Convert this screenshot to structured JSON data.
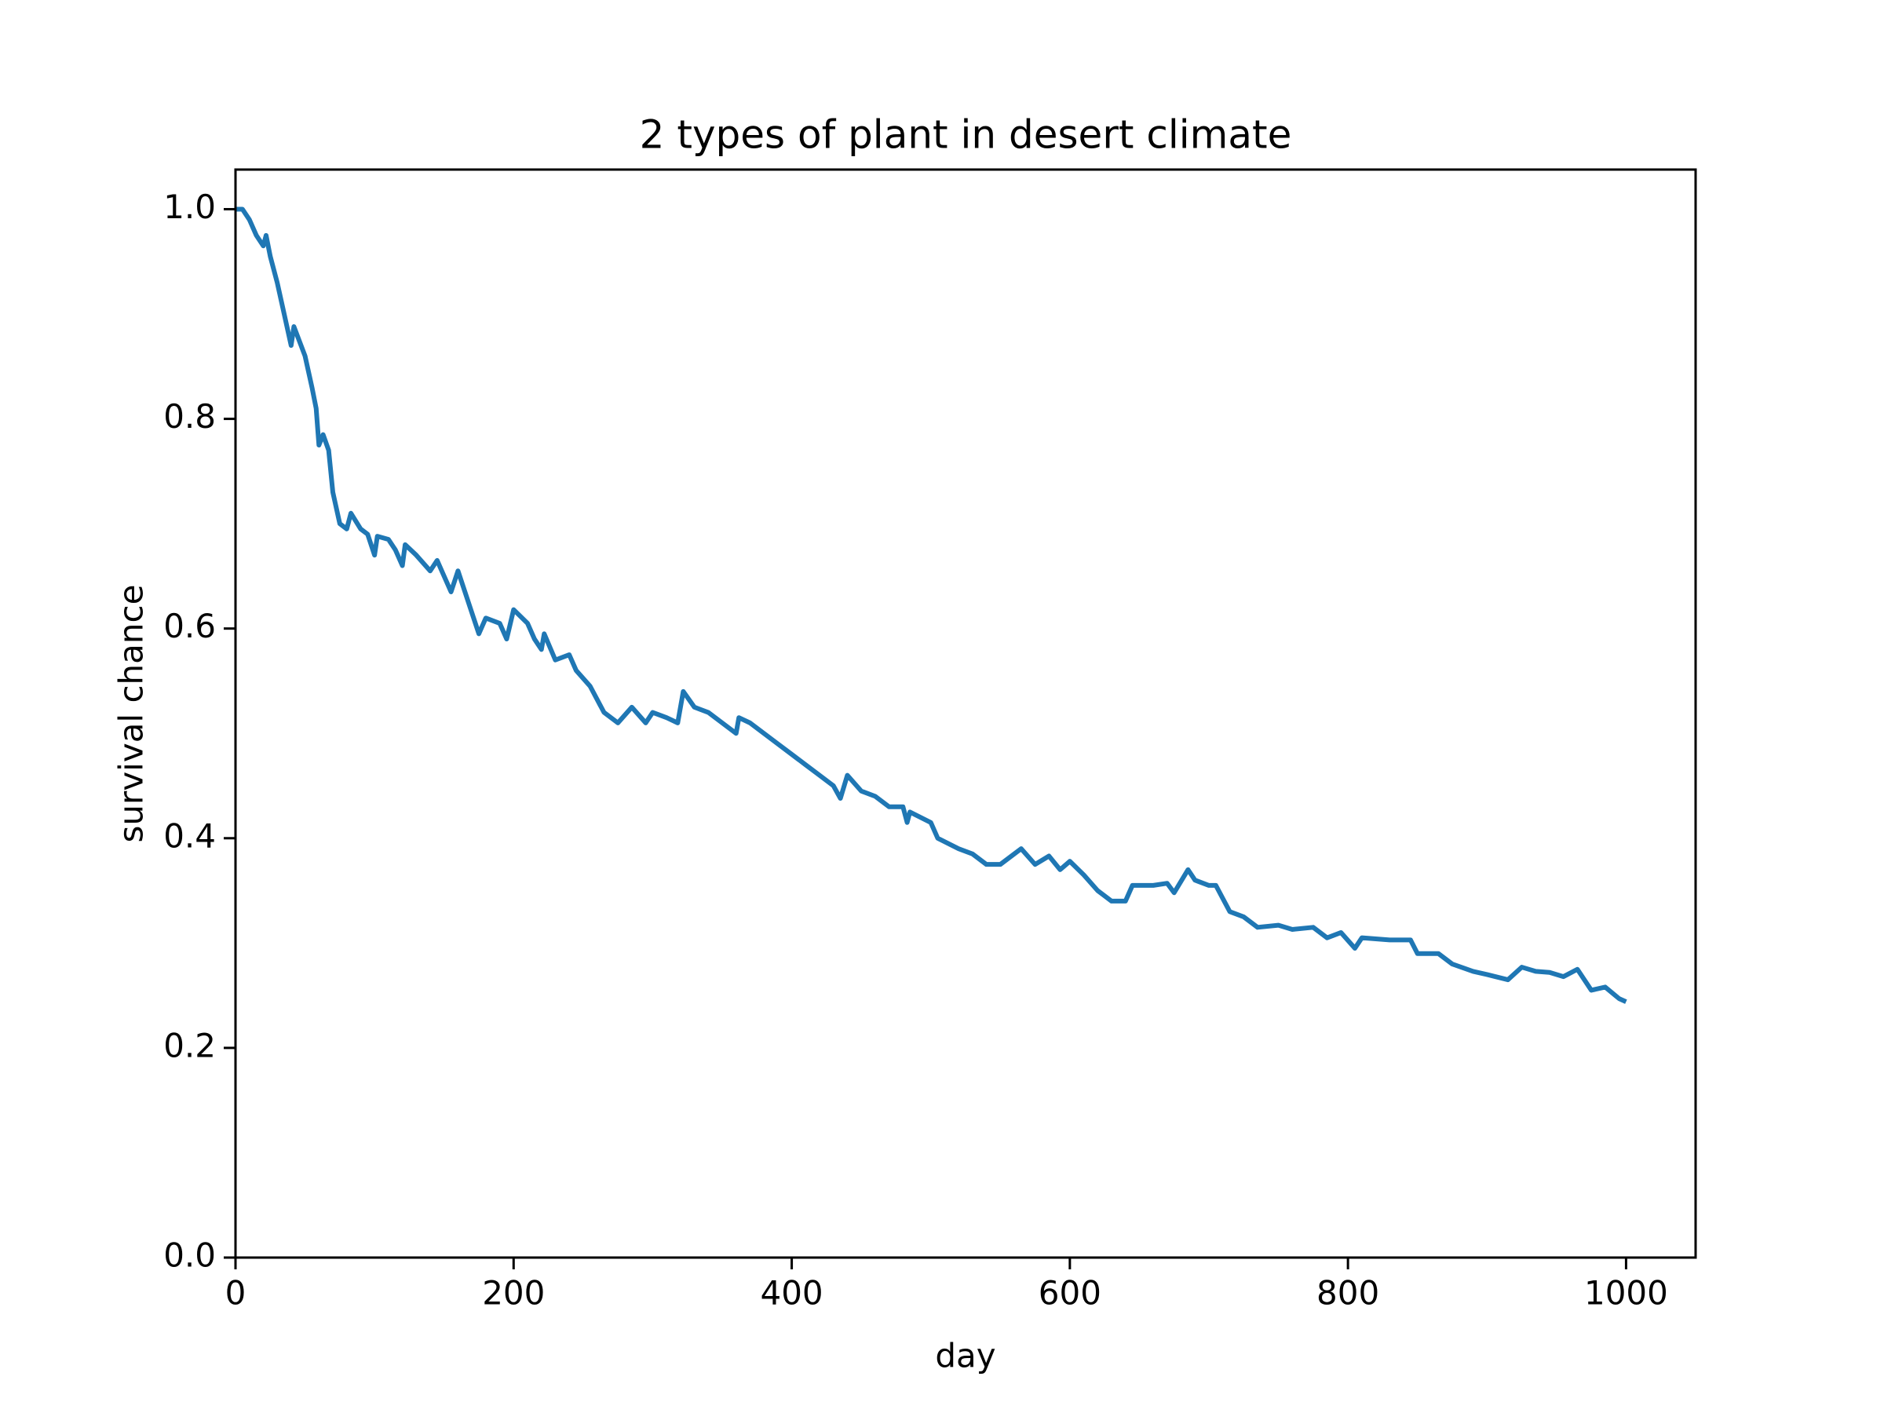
{
  "chart_data": {
    "type": "line",
    "title": "2 types of plant in desert climate",
    "x_label": "day",
    "y_label": "survival chance",
    "x": [
      0,
      5,
      10,
      15,
      20,
      22,
      25,
      30,
      35,
      40,
      42,
      50,
      55,
      58,
      60,
      63,
      67,
      70,
      75,
      80,
      83,
      90,
      95,
      100,
      102,
      110,
      115,
      120,
      122,
      130,
      140,
      145,
      150,
      155,
      160,
      165,
      170,
      175,
      180,
      190,
      195,
      200,
      210,
      215,
      220,
      222,
      230,
      240,
      245,
      255,
      265,
      275,
      285,
      295,
      300,
      310,
      318,
      322,
      330,
      340,
      350,
      360,
      362,
      370,
      380,
      390,
      400,
      410,
      420,
      430,
      435,
      440,
      450,
      460,
      470,
      480,
      483,
      485,
      500,
      505,
      520,
      530,
      540,
      550,
      560,
      565,
      575,
      585,
      593,
      600,
      610,
      620,
      630,
      640,
      645,
      660,
      670,
      675,
      685,
      690,
      700,
      705,
      715,
      725,
      735,
      750,
      760,
      775,
      785,
      795,
      805,
      810,
      830,
      845,
      850,
      865,
      875,
      890,
      900,
      915,
      925,
      935,
      945,
      955,
      965,
      975,
      985,
      995,
      1000
    ],
    "series": [
      {
        "name": "survival chance",
        "color": "#1f77b4",
        "values": [
          1.0,
          1.0,
          0.99,
          0.975,
          0.965,
          0.975,
          0.955,
          0.93,
          0.9,
          0.87,
          0.888,
          0.86,
          0.83,
          0.81,
          0.775,
          0.785,
          0.77,
          0.73,
          0.7,
          0.695,
          0.71,
          0.695,
          0.69,
          0.67,
          0.688,
          0.685,
          0.675,
          0.66,
          0.68,
          0.67,
          0.655,
          0.665,
          0.65,
          0.635,
          0.655,
          0.635,
          0.615,
          0.595,
          0.61,
          0.605,
          0.59,
          0.618,
          0.605,
          0.59,
          0.58,
          0.595,
          0.57,
          0.575,
          0.56,
          0.545,
          0.52,
          0.51,
          0.525,
          0.51,
          0.52,
          0.515,
          0.51,
          0.54,
          0.525,
          0.52,
          0.51,
          0.5,
          0.515,
          0.51,
          0.5,
          0.49,
          0.48,
          0.47,
          0.46,
          0.45,
          0.438,
          0.46,
          0.445,
          0.44,
          0.43,
          0.43,
          0.415,
          0.425,
          0.415,
          0.4,
          0.39,
          0.385,
          0.375,
          0.375,
          0.385,
          0.39,
          0.375,
          0.383,
          0.37,
          0.378,
          0.365,
          0.35,
          0.34,
          0.34,
          0.355,
          0.355,
          0.357,
          0.348,
          0.37,
          0.36,
          0.355,
          0.355,
          0.33,
          0.325,
          0.315,
          0.317,
          0.313,
          0.315,
          0.305,
          0.31,
          0.295,
          0.305,
          0.303,
          0.303,
          0.29,
          0.29,
          0.28,
          0.273,
          0.27,
          0.265,
          0.277,
          0.273,
          0.272,
          0.268,
          0.275,
          0.255,
          0.258,
          0.247,
          0.244
        ]
      }
    ],
    "xlim": [
      0,
      1050
    ],
    "ylim": [
      0,
      1.0378
    ],
    "xticks": [
      0,
      200,
      400,
      600,
      800,
      1000
    ],
    "yticks": [
      {
        "value": 0,
        "label": "0.0"
      },
      0.2,
      0.4,
      0.6,
      0.8,
      {
        "value": 1,
        "label": "1.0"
      }
    ]
  }
}
